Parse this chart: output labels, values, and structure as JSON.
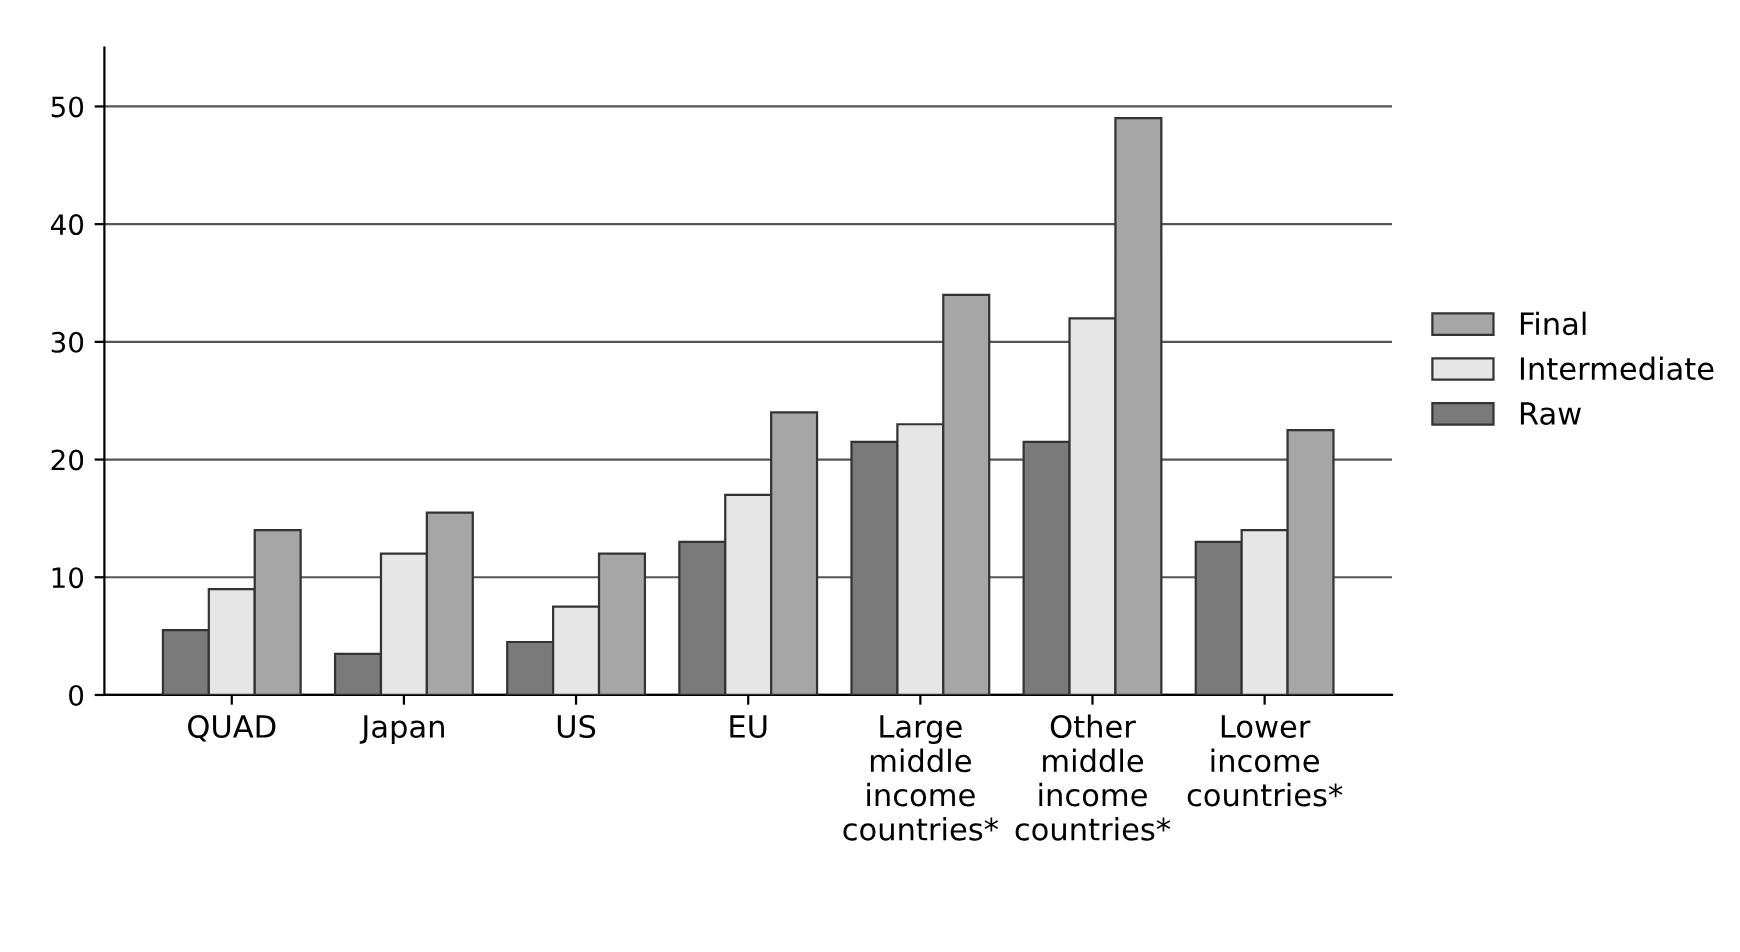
{
  "chart_data": {
    "type": "bar",
    "categories": [
      "QUAD",
      "Japan",
      "US",
      "EU",
      "Large\nmiddle\nincome\ncountries*",
      "Other\nmiddle\nincome\ncountries*",
      "Lower\nincome\ncountries*"
    ],
    "series": [
      {
        "name": "Raw",
        "color": "#7a7a7a",
        "values": [
          5.5,
          3.5,
          4.5,
          13,
          21.5,
          21.5,
          13
        ]
      },
      {
        "name": "Intermediate",
        "color": "#e6e6e6",
        "values": [
          9,
          12,
          7.5,
          17,
          23,
          32,
          14
        ]
      },
      {
        "name": "Final",
        "color": "#a6a6a6",
        "values": [
          14,
          15.5,
          12,
          24,
          34,
          49,
          22.5
        ]
      }
    ],
    "ylim": [
      0,
      55
    ],
    "yticks": [
      0,
      10,
      20,
      30,
      40,
      50
    ],
    "grid": "y",
    "legend": "right"
  }
}
